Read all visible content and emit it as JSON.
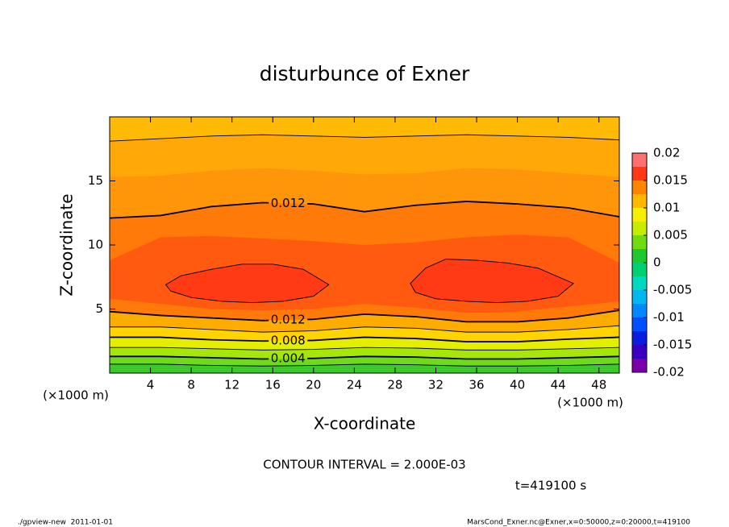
{
  "chart_data": {
    "type": "contour",
    "title": "disturbunce of Exner",
    "xlabel": "X-coordinate",
    "ylabel": "Z-coordinate",
    "xunit": "(×1000 m)",
    "yunit": "(×1000 m)",
    "note": "CONTOUR INTERVAL = 2.000E-03",
    "time": "t=419100 s",
    "footer_left": "./gpview-new  2011-01-01",
    "footer_right": "MarsCond_Exner.nc@Exner,x=0:50000,z=0:20000,t=419100",
    "xlim": [
      0,
      50
    ],
    "ylim": [
      0,
      20
    ],
    "xticks": [
      4,
      8,
      12,
      16,
      20,
      24,
      28,
      32,
      36,
      40,
      44,
      48
    ],
    "yticks": [
      5,
      10,
      15
    ],
    "background": "#3acb2a",
    "regions": [
      {
        "color": "#6fd91e",
        "x": [
          0,
          5,
          10,
          15,
          20,
          25,
          30,
          35,
          40,
          45,
          50,
          50,
          0
        ],
        "y": [
          0.7,
          0.7,
          0.6,
          0.55,
          0.6,
          0.7,
          0.65,
          0.55,
          0.55,
          0.6,
          0.7,
          20,
          20
        ]
      },
      {
        "color": "#a6e60a",
        "x": [
          0,
          5,
          10,
          15,
          20,
          25,
          30,
          35,
          40,
          45,
          50,
          50,
          0
        ],
        "y": [
          1.3,
          1.3,
          1.2,
          1.1,
          1.15,
          1.3,
          1.25,
          1.1,
          1.1,
          1.2,
          1.3,
          20,
          20
        ]
      },
      {
        "color": "#e4ef00",
        "x": [
          0,
          5,
          10,
          15,
          20,
          25,
          30,
          35,
          40,
          45,
          50,
          50,
          0
        ],
        "y": [
          2.0,
          2.0,
          1.9,
          1.8,
          1.85,
          2.0,
          1.95,
          1.8,
          1.8,
          1.9,
          2.0,
          20,
          20
        ]
      },
      {
        "color": "#ffd400",
        "x": [
          0,
          5,
          10,
          15,
          20,
          25,
          30,
          35,
          40,
          45,
          50,
          50,
          0
        ],
        "y": [
          2.8,
          2.8,
          2.6,
          2.5,
          2.55,
          2.8,
          2.7,
          2.45,
          2.45,
          2.65,
          2.8,
          20,
          20
        ]
      },
      {
        "color": "#ffac00",
        "x": [
          0,
          5,
          10,
          15,
          20,
          25,
          30,
          35,
          40,
          45,
          50,
          50,
          0
        ],
        "y": [
          3.6,
          3.6,
          3.4,
          3.2,
          3.3,
          3.6,
          3.5,
          3.2,
          3.2,
          3.4,
          3.7,
          20,
          20
        ]
      },
      {
        "color": "#ff7a08",
        "x": [
          0,
          5,
          10,
          15,
          20,
          25,
          30,
          35,
          40,
          45,
          50,
          50,
          0
        ],
        "y": [
          4.8,
          4.5,
          4.3,
          4.1,
          4.2,
          4.6,
          4.4,
          4.0,
          4.0,
          4.3,
          4.9,
          20,
          20
        ]
      },
      {
        "color": "#ff5a10",
        "x": [
          0,
          5,
          10,
          15,
          20,
          25,
          30,
          35,
          40,
          45,
          50,
          50,
          45,
          40,
          35,
          30,
          25,
          20,
          15,
          10,
          5,
          0
        ],
        "y": [
          5.8,
          5.4,
          5.0,
          4.9,
          5.0,
          5.4,
          5.1,
          4.7,
          4.8,
          5.2,
          5.6,
          8.6,
          10.6,
          10.8,
          10.6,
          10.2,
          10.0,
          10.3,
          10.5,
          10.7,
          10.6,
          8.8
        ]
      },
      {
        "color": "#ff960a",
        "x": [
          0,
          5,
          10,
          15,
          20,
          25,
          30,
          35,
          40,
          45,
          50,
          50,
          0
        ],
        "y": [
          12.1,
          12.3,
          13.0,
          13.3,
          13.2,
          12.6,
          13.1,
          13.4,
          13.2,
          12.9,
          12.2,
          20,
          20
        ]
      },
      {
        "color": "#ffa808",
        "x": [
          0,
          5,
          10,
          15,
          20,
          25,
          30,
          35,
          40,
          45,
          50,
          50,
          0
        ],
        "y": [
          15.3,
          15.4,
          15.8,
          16.0,
          15.8,
          15.5,
          15.6,
          16.0,
          15.9,
          15.6,
          15.3,
          20,
          20
        ]
      },
      {
        "color": "#ffba06",
        "x": [
          0,
          5,
          10,
          15,
          20,
          25,
          30,
          35,
          40,
          45,
          50,
          50,
          0
        ],
        "y": [
          18.1,
          18.3,
          18.5,
          18.6,
          18.5,
          18.4,
          18.5,
          18.6,
          18.5,
          18.4,
          18.2,
          20,
          20
        ]
      },
      {
        "color": "#ff3a14",
        "x": [
          5.5,
          7,
          10,
          13,
          16,
          19,
          21.5,
          20,
          17,
          14,
          11,
          8,
          6
        ],
        "y": [
          6.9,
          7.6,
          8.1,
          8.5,
          8.5,
          8.1,
          6.9,
          6.0,
          5.6,
          5.5,
          5.6,
          5.9,
          6.4
        ]
      },
      {
        "color": "#ff3a14",
        "x": [
          29.5,
          31,
          33,
          36,
          39,
          42,
          45.5,
          44,
          41,
          38,
          35,
          32,
          30
        ],
        "y": [
          7.0,
          8.2,
          8.9,
          8.8,
          8.6,
          8.2,
          7.0,
          6.0,
          5.6,
          5.5,
          5.6,
          5.8,
          6.3
        ]
      }
    ],
    "contours": [
      {
        "x": [
          0,
          5,
          10,
          15,
          20,
          25,
          30,
          35,
          40,
          45,
          50
        ],
        "y": [
          0.7,
          0.7,
          0.6,
          0.55,
          0.6,
          0.7,
          0.65,
          0.55,
          0.55,
          0.6,
          0.7
        ]
      },
      {
        "x": [
          0,
          5,
          10,
          15,
          20,
          25,
          30,
          35,
          40,
          45,
          50
        ],
        "y": [
          1.3,
          1.3,
          1.2,
          1.1,
          1.15,
          1.3,
          1.25,
          1.1,
          1.1,
          1.2,
          1.3
        ],
        "label": 0.004
      },
      {
        "x": [
          0,
          5,
          10,
          15,
          20,
          25,
          30,
          35,
          40,
          45,
          50
        ],
        "y": [
          2.0,
          2.0,
          1.9,
          1.8,
          1.85,
          2.0,
          1.95,
          1.8,
          1.8,
          1.9,
          2.0
        ]
      },
      {
        "x": [
          0,
          5,
          10,
          15,
          20,
          25,
          30,
          35,
          40,
          45,
          50
        ],
        "y": [
          2.8,
          2.8,
          2.6,
          2.5,
          2.55,
          2.8,
          2.7,
          2.45,
          2.45,
          2.65,
          2.8
        ],
        "label": 0.008
      },
      {
        "x": [
          0,
          5,
          10,
          15,
          20,
          25,
          30,
          35,
          40,
          45,
          50
        ],
        "y": [
          3.6,
          3.6,
          3.4,
          3.2,
          3.3,
          3.6,
          3.5,
          3.2,
          3.2,
          3.4,
          3.7
        ]
      },
      {
        "x": [
          0,
          5,
          10,
          15,
          20,
          25,
          30,
          35,
          40,
          45,
          50
        ],
        "y": [
          4.8,
          4.5,
          4.3,
          4.1,
          4.2,
          4.6,
          4.4,
          4.0,
          4.0,
          4.3,
          4.9
        ],
        "label": 0.012
      },
      {
        "x": [
          0,
          5,
          10,
          15,
          20,
          25,
          30,
          35,
          40,
          45,
          50
        ],
        "y": [
          12.1,
          12.3,
          13.0,
          13.3,
          13.2,
          12.6,
          13.1,
          13.4,
          13.2,
          12.9,
          12.2
        ],
        "label": 0.012
      },
      {
        "x": [
          0,
          5,
          10,
          15,
          20,
          25,
          30,
          35,
          40,
          45,
          50
        ],
        "y": [
          18.1,
          18.3,
          18.5,
          18.6,
          18.5,
          18.4,
          18.5,
          18.6,
          18.5,
          18.4,
          18.2
        ]
      },
      {
        "closed": true,
        "x": [
          5.5,
          7,
          10,
          13,
          16,
          19,
          21.5,
          20,
          17,
          14,
          11,
          8,
          6
        ],
        "y": [
          6.9,
          7.6,
          8.1,
          8.5,
          8.5,
          8.1,
          6.9,
          6.0,
          5.6,
          5.5,
          5.6,
          5.9,
          6.4
        ]
      },
      {
        "closed": true,
        "x": [
          29.5,
          31,
          33,
          36,
          39,
          42,
          45.5,
          44,
          41,
          38,
          35,
          32,
          30
        ],
        "y": [
          7.0,
          8.2,
          8.9,
          8.8,
          8.6,
          8.2,
          7.0,
          6.0,
          5.6,
          5.5,
          5.6,
          5.8,
          6.3
        ]
      }
    ],
    "colorbar": {
      "levels": [
        -0.02,
        -0.0175,
        -0.015,
        -0.0125,
        -0.01,
        -0.0075,
        -0.005,
        -0.0025,
        0,
        0.0025,
        0.005,
        0.0075,
        0.01,
        0.0125,
        0.015,
        0.0175,
        0.02
      ],
      "colors": [
        "#7a00a8",
        "#3a00c0",
        "#0a1ee0",
        "#0050ff",
        "#0088ff",
        "#00b8f0",
        "#00d8c0",
        "#00d070",
        "#20c830",
        "#70dc10",
        "#c8ec00",
        "#f4f000",
        "#ffb800",
        "#ff8400",
        "#ff3818",
        "#ff7070"
      ],
      "ticks": [
        -0.02,
        -0.015,
        -0.01,
        -0.005,
        0,
        0.005,
        0.01,
        0.015,
        0.02
      ]
    }
  }
}
